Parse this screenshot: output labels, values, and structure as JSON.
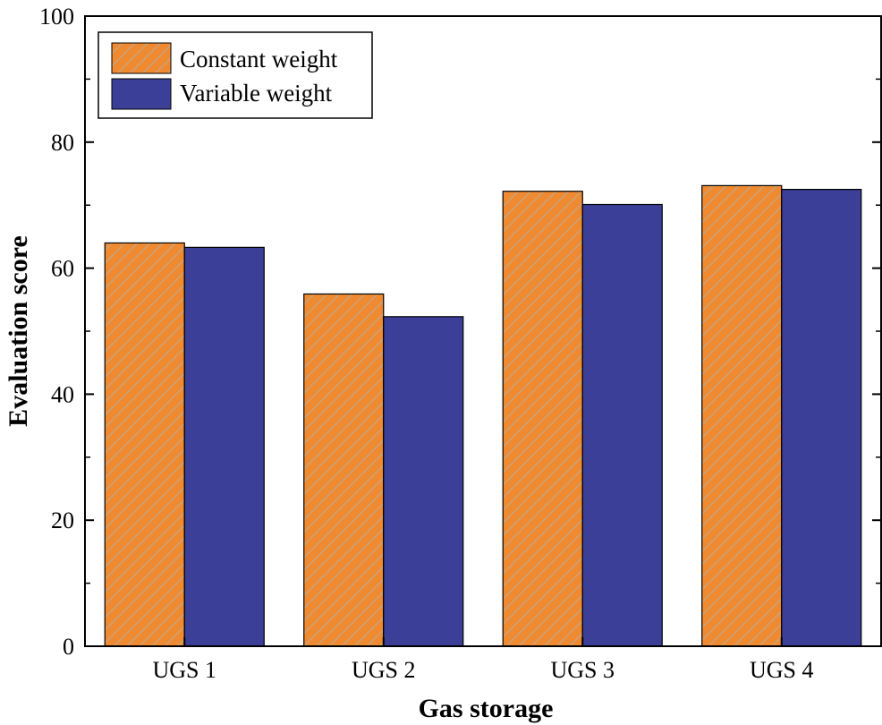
{
  "chart_data": {
    "type": "bar",
    "categories": [
      "UGS 1",
      "UGS 2",
      "UGS 3",
      "UGS 4"
    ],
    "series": [
      {
        "name": "Constant weight",
        "values": [
          64.0,
          55.9,
          72.2,
          73.1
        ],
        "color": "#f08a30",
        "pattern": "diagonal-hatch"
      },
      {
        "name": "Variable weight",
        "values": [
          63.3,
          52.3,
          70.1,
          72.5
        ],
        "color": "#3c3f98",
        "pattern": "solid"
      }
    ],
    "xlabel": "Gas storage",
    "ylabel": "Evaluation score",
    "ylim": [
      0,
      100
    ],
    "yticks": [
      "0",
      "20",
      "40",
      "60",
      "80",
      "100"
    ],
    "legend_position": "top-left",
    "grid": false
  }
}
